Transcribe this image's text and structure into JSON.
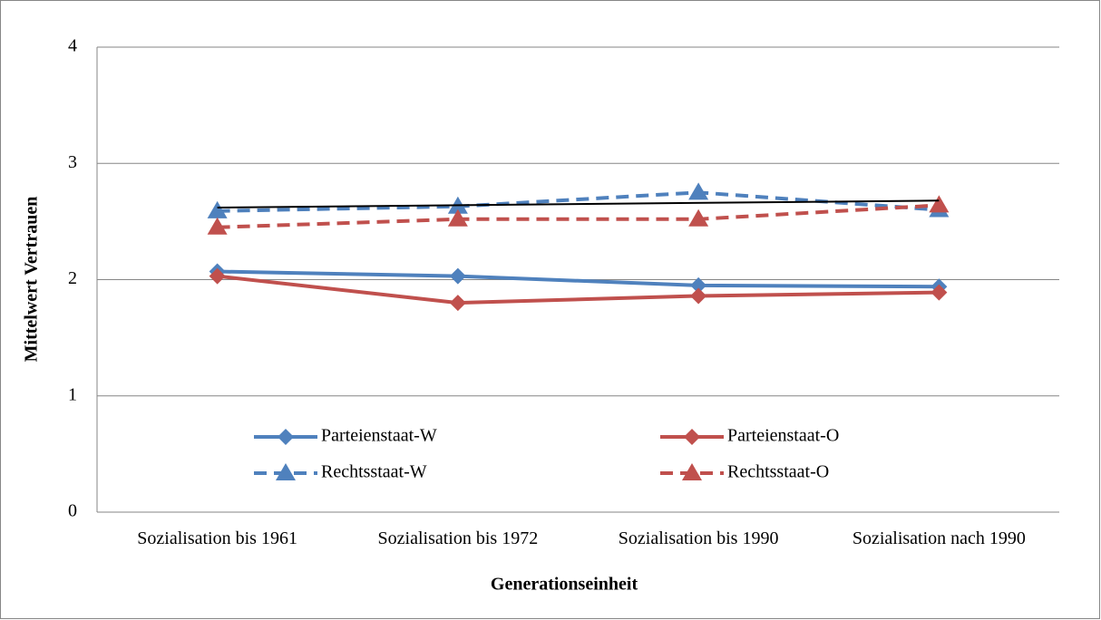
{
  "chart_data": {
    "type": "line",
    "x_label": "Generationseinheit",
    "y_label": "Mittelwert Vertrauen",
    "categories": [
      "Sozialisation bis 1961",
      "Sozialisation bis 1972",
      "Sozialisation bis 1990",
      "Sozialisation nach 1990"
    ],
    "series": [
      {
        "name": "Parteienstaat-W",
        "color": "#4f81bd",
        "marker": "diamond",
        "dash": false,
        "values": [
          2.07,
          2.03,
          1.95,
          1.94
        ]
      },
      {
        "name": "Parteienstaat-O",
        "color": "#c0504d",
        "marker": "diamond",
        "dash": false,
        "values": [
          2.03,
          1.8,
          1.86,
          1.89
        ]
      },
      {
        "name": "Rechtsstaat-W",
        "color": "#4f81bd",
        "marker": "triangle",
        "dash": true,
        "values": [
          2.59,
          2.63,
          2.75,
          2.6
        ]
      },
      {
        "name": "Rechtsstaat-O",
        "color": "#c0504d",
        "marker": "triangle",
        "dash": true,
        "values": [
          2.45,
          2.52,
          2.52,
          2.64
        ]
      }
    ],
    "trend_line": {
      "start": 2.62,
      "end": 2.68,
      "color": "#000000"
    },
    "ylim": [
      0,
      4
    ],
    "yticks": [
      0,
      1,
      2,
      3,
      4
    ],
    "grid": true,
    "legend": "bottom"
  }
}
